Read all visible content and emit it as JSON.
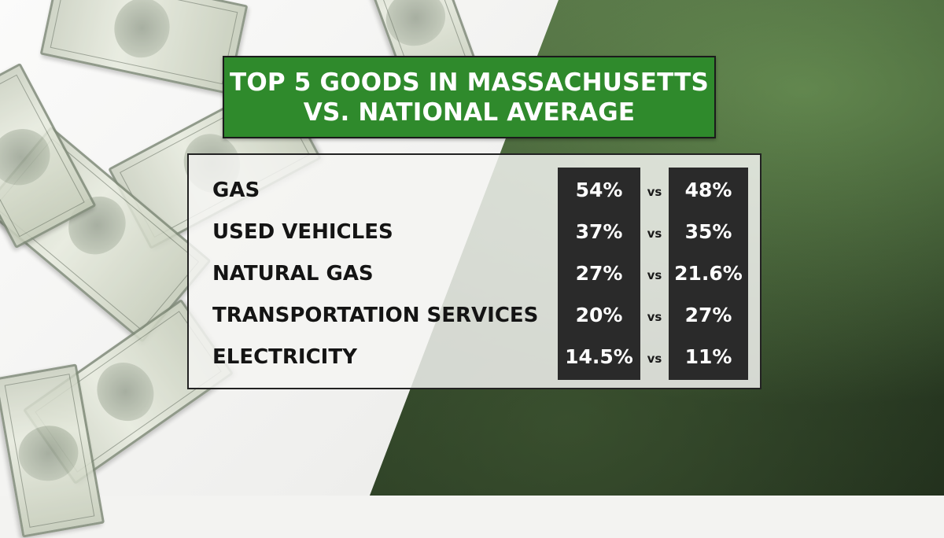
{
  "title": {
    "line1": "TOP 5 GOODS IN MASSACHUSETTS",
    "line2": "VS. NATIONAL AVERAGE"
  },
  "rows": [
    {
      "label": "GAS",
      "massachusetts": "54%",
      "vs": "vs",
      "national": "48%"
    },
    {
      "label": "USED VEHICLES",
      "massachusetts": "37%",
      "vs": "vs",
      "national": "35%"
    },
    {
      "label": "NATURAL GAS",
      "massachusetts": "27%",
      "vs": "vs",
      "national": "21.6%"
    },
    {
      "label": "TRANSPORTATION SERVICES",
      "massachusetts": "20%",
      "vs": "vs",
      "national": "27%"
    },
    {
      "label": "ELECTRICITY",
      "massachusetts": "14.5%",
      "vs": "vs",
      "national": "11%"
    }
  ],
  "colors": {
    "title_bg": "#2f8a2c",
    "value_column_bg": "#2a2a2a",
    "background_green": "#2f4428"
  }
}
